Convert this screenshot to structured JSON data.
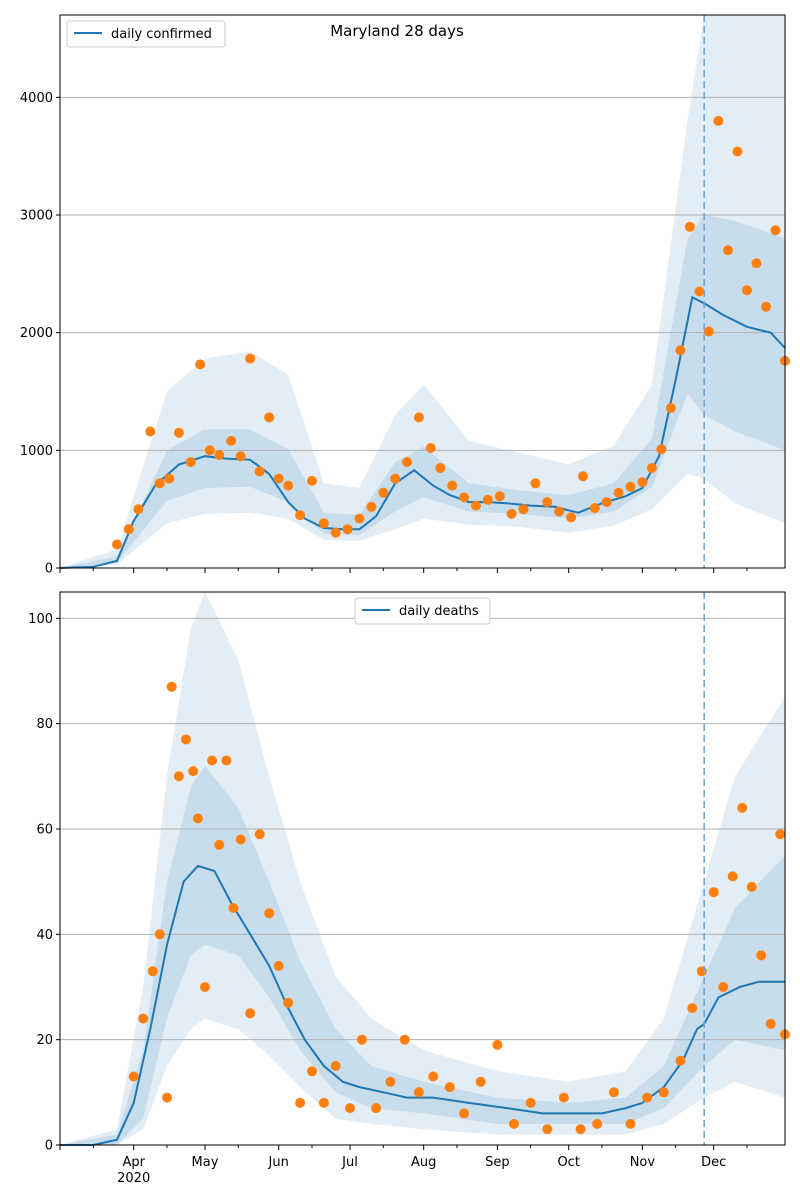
{
  "colors": {
    "line": "#1f77b4",
    "dots": "#ff7f0e",
    "band": "#1f77b4",
    "vline": "#6fa8d6",
    "grid": "#b0b0b0"
  },
  "chart_data": [
    {
      "type": "line",
      "title": "Maryland 28 days",
      "xlabel": "",
      "ylabel": "",
      "xlim": [
        "2020-03-01",
        "2020-12-31"
      ],
      "ylim": [
        0,
        4700
      ],
      "yticks": [
        0,
        1000,
        2000,
        3000,
        4000
      ],
      "grid": "y",
      "legend": {
        "position": "top-left",
        "entries": [
          "daily confirmed"
        ]
      },
      "marker_date": "2020-11-27",
      "series": [
        {
          "name": "daily confirmed",
          "kind": "line",
          "x": [
            "2020-03-01",
            "2020-03-15",
            "2020-03-25",
            "2020-04-01",
            "2020-04-10",
            "2020-04-20",
            "2020-05-01",
            "2020-05-10",
            "2020-05-20",
            "2020-05-28",
            "2020-06-05",
            "2020-06-12",
            "2020-06-20",
            "2020-06-28",
            "2020-07-05",
            "2020-07-12",
            "2020-07-20",
            "2020-07-28",
            "2020-08-05",
            "2020-08-12",
            "2020-08-20",
            "2020-08-28",
            "2020-09-05",
            "2020-09-15",
            "2020-09-25",
            "2020-10-05",
            "2020-10-15",
            "2020-10-25",
            "2020-11-01",
            "2020-11-08",
            "2020-11-15",
            "2020-11-22",
            "2020-11-27",
            "2020-12-05",
            "2020-12-15",
            "2020-12-25",
            "2020-12-31"
          ],
          "values": [
            0,
            10,
            60,
            400,
            700,
            880,
            950,
            930,
            920,
            800,
            560,
            420,
            340,
            330,
            330,
            440,
            720,
            830,
            700,
            620,
            560,
            560,
            550,
            530,
            520,
            470,
            550,
            610,
            680,
            950,
            1600,
            2300,
            2250,
            2150,
            2050,
            2000,
            1870
          ]
        },
        {
          "name": "observed",
          "kind": "points",
          "x": [
            "2020-03-25",
            "2020-03-30",
            "2020-04-03",
            "2020-04-08",
            "2020-04-12",
            "2020-04-16",
            "2020-04-20",
            "2020-04-25",
            "2020-04-29",
            "2020-05-03",
            "2020-05-07",
            "2020-05-12",
            "2020-05-16",
            "2020-05-20",
            "2020-05-24",
            "2020-05-28",
            "2020-06-01",
            "2020-06-05",
            "2020-06-10",
            "2020-06-15",
            "2020-06-20",
            "2020-06-25",
            "2020-06-30",
            "2020-07-05",
            "2020-07-10",
            "2020-07-15",
            "2020-07-20",
            "2020-07-25",
            "2020-07-30",
            "2020-08-04",
            "2020-08-08",
            "2020-08-13",
            "2020-08-18",
            "2020-08-23",
            "2020-08-28",
            "2020-09-02",
            "2020-09-07",
            "2020-09-12",
            "2020-09-17",
            "2020-09-22",
            "2020-09-27",
            "2020-10-02",
            "2020-10-07",
            "2020-10-12",
            "2020-10-17",
            "2020-10-22",
            "2020-10-27",
            "2020-11-01",
            "2020-11-05",
            "2020-11-09",
            "2020-11-13",
            "2020-11-17",
            "2020-11-21",
            "2020-11-25",
            "2020-11-29",
            "2020-12-03",
            "2020-12-07",
            "2020-12-11",
            "2020-12-15",
            "2020-12-19",
            "2020-12-23",
            "2020-12-27",
            "2020-12-31"
          ],
          "values": [
            200,
            330,
            500,
            1160,
            720,
            760,
            1150,
            900,
            1730,
            1000,
            960,
            1080,
            950,
            1780,
            820,
            1280,
            760,
            700,
            450,
            740,
            380,
            300,
            330,
            420,
            520,
            640,
            760,
            900,
            1280,
            1020,
            850,
            700,
            600,
            530,
            580,
            610,
            460,
            500,
            720,
            560,
            480,
            430,
            780,
            510,
            560,
            640,
            690,
            730,
            850,
            1010,
            1360,
            1850,
            2900,
            2350,
            2010,
            3800,
            2700,
            3540,
            2360,
            2590,
            2220,
            2870,
            1760
          ]
        },
        {
          "name": "band-90",
          "kind": "band",
          "x": [
            "2020-03-01",
            "2020-03-25",
            "2020-04-15",
            "2020-05-01",
            "2020-05-20",
            "2020-06-05",
            "2020-06-20",
            "2020-07-05",
            "2020-07-20",
            "2020-08-01",
            "2020-08-20",
            "2020-09-10",
            "2020-10-01",
            "2020-10-20",
            "2020-11-05",
            "2020-11-20",
            "2020-11-27",
            "2020-12-10",
            "2020-12-31"
          ],
          "low": [
            0,
            30,
            380,
            460,
            470,
            420,
            240,
            230,
            330,
            420,
            370,
            350,
            300,
            360,
            500,
            800,
            760,
            550,
            380
          ],
          "high": [
            0,
            160,
            1500,
            1780,
            1840,
            1640,
            720,
            680,
            1300,
            1560,
            1080,
            980,
            880,
            1040,
            1560,
            3800,
            4800,
            4800,
            4800
          ]
        },
        {
          "name": "band-50",
          "kind": "band",
          "x": [
            "2020-03-01",
            "2020-03-25",
            "2020-04-15",
            "2020-05-01",
            "2020-05-20",
            "2020-06-05",
            "2020-06-20",
            "2020-07-05",
            "2020-07-20",
            "2020-08-01",
            "2020-08-20",
            "2020-09-10",
            "2020-10-01",
            "2020-10-20",
            "2020-11-05",
            "2020-11-20",
            "2020-11-27",
            "2020-12-10",
            "2020-12-31"
          ],
          "low": [
            0,
            45,
            570,
            680,
            690,
            560,
            290,
            280,
            480,
            600,
            480,
            460,
            420,
            480,
            690,
            1480,
            1300,
            1160,
            1000
          ],
          "high": [
            0,
            100,
            1000,
            1180,
            1180,
            1010,
            470,
            450,
            900,
            1030,
            720,
            660,
            620,
            720,
            1100,
            2800,
            3000,
            2950,
            2800
          ]
        }
      ]
    },
    {
      "type": "line",
      "title": "",
      "xlabel": "",
      "ylabel": "",
      "xlim": [
        "2020-03-01",
        "2020-12-31"
      ],
      "ylim": [
        0,
        105
      ],
      "yticks": [
        0,
        20,
        40,
        60,
        80,
        100
      ],
      "xticks": [
        "Apr",
        "May",
        "Jun",
        "Jul",
        "Aug",
        "Sep",
        "Oct",
        "Nov",
        "Dec"
      ],
      "xtick_dates": [
        "2020-04-01",
        "2020-05-01",
        "2020-06-01",
        "2020-07-01",
        "2020-08-01",
        "2020-09-01",
        "2020-10-01",
        "2020-11-01",
        "2020-12-01"
      ],
      "year_label": "2020",
      "grid": "y",
      "legend": {
        "position": "top-center",
        "entries": [
          "daily deaths"
        ]
      },
      "marker_date": "2020-11-27",
      "series": [
        {
          "name": "daily deaths",
          "kind": "line",
          "x": [
            "2020-03-01",
            "2020-03-15",
            "2020-03-25",
            "2020-04-01",
            "2020-04-08",
            "2020-04-15",
            "2020-04-22",
            "2020-04-28",
            "2020-05-05",
            "2020-05-12",
            "2020-05-20",
            "2020-05-28",
            "2020-06-05",
            "2020-06-12",
            "2020-06-20",
            "2020-06-28",
            "2020-07-05",
            "2020-07-15",
            "2020-07-25",
            "2020-08-05",
            "2020-08-20",
            "2020-09-05",
            "2020-09-20",
            "2020-10-05",
            "2020-10-15",
            "2020-10-25",
            "2020-11-01",
            "2020-11-10",
            "2020-11-18",
            "2020-11-24",
            "2020-11-27",
            "2020-12-03",
            "2020-12-12",
            "2020-12-20",
            "2020-12-31"
          ],
          "values": [
            0,
            0,
            1,
            8,
            22,
            38,
            50,
            53,
            52,
            46,
            40,
            34,
            26,
            20,
            15,
            12,
            11,
            10,
            9,
            9,
            8,
            7,
            6,
            6,
            6,
            7,
            8,
            11,
            16,
            22,
            23,
            28,
            30,
            31,
            31
          ]
        },
        {
          "name": "observed",
          "kind": "points",
          "x": [
            "2020-04-01",
            "2020-04-05",
            "2020-04-09",
            "2020-04-12",
            "2020-04-15",
            "2020-04-17",
            "2020-04-20",
            "2020-04-23",
            "2020-04-26",
            "2020-04-28",
            "2020-05-01",
            "2020-05-04",
            "2020-05-07",
            "2020-05-10",
            "2020-05-13",
            "2020-05-16",
            "2020-05-20",
            "2020-05-24",
            "2020-05-28",
            "2020-06-01",
            "2020-06-05",
            "2020-06-10",
            "2020-06-15",
            "2020-06-20",
            "2020-06-25",
            "2020-07-01",
            "2020-07-06",
            "2020-07-12",
            "2020-07-18",
            "2020-07-24",
            "2020-07-30",
            "2020-08-05",
            "2020-08-12",
            "2020-08-18",
            "2020-08-25",
            "2020-09-01",
            "2020-09-08",
            "2020-09-15",
            "2020-09-22",
            "2020-09-29",
            "2020-10-06",
            "2020-10-13",
            "2020-10-20",
            "2020-10-27",
            "2020-11-03",
            "2020-11-10",
            "2020-11-17",
            "2020-11-22",
            "2020-11-26",
            "2020-12-01",
            "2020-12-05",
            "2020-12-09",
            "2020-12-13",
            "2020-12-17",
            "2020-12-21",
            "2020-12-25",
            "2020-12-29",
            "2020-12-31"
          ],
          "values": [
            13,
            24,
            33,
            40,
            9,
            87,
            70,
            77,
            71,
            62,
            30,
            73,
            57,
            73,
            45,
            58,
            25,
            59,
            44,
            34,
            27,
            8,
            14,
            8,
            15,
            7,
            20,
            7,
            12,
            20,
            10,
            13,
            11,
            6,
            12,
            19,
            4,
            8,
            3,
            9,
            3,
            4,
            10,
            4,
            9,
            10,
            16,
            26,
            33,
            48,
            30,
            51,
            64,
            49,
            36,
            23,
            59,
            21
          ]
        },
        {
          "name": "band-90",
          "kind": "band",
          "x": [
            "2020-03-01",
            "2020-03-25",
            "2020-04-05",
            "2020-04-15",
            "2020-04-25",
            "2020-05-01",
            "2020-05-15",
            "2020-05-28",
            "2020-06-10",
            "2020-06-25",
            "2020-07-10",
            "2020-08-01",
            "2020-09-01",
            "2020-10-01",
            "2020-10-25",
            "2020-11-10",
            "2020-11-27",
            "2020-12-10",
            "2020-12-31"
          ],
          "low": [
            0,
            0,
            3,
            15,
            22,
            24,
            22,
            17,
            11,
            5,
            4,
            3,
            2,
            2,
            2,
            4,
            9,
            12,
            9
          ],
          "high": [
            0,
            3,
            30,
            70,
            98,
            105,
            92,
            70,
            50,
            32,
            24,
            18,
            14,
            12,
            14,
            24,
            50,
            70,
            85
          ]
        },
        {
          "name": "band-50",
          "kind": "band",
          "x": [
            "2020-03-01",
            "2020-03-25",
            "2020-04-05",
            "2020-04-15",
            "2020-04-25",
            "2020-05-01",
            "2020-05-15",
            "2020-05-28",
            "2020-06-10",
            "2020-06-25",
            "2020-07-10",
            "2020-08-01",
            "2020-09-01",
            "2020-10-01",
            "2020-10-25",
            "2020-11-10",
            "2020-11-27",
            "2020-12-10",
            "2020-12-31"
          ],
          "low": [
            0,
            0,
            5,
            24,
            36,
            38,
            36,
            28,
            18,
            10,
            7,
            6,
            4,
            4,
            4,
            7,
            15,
            20,
            18
          ],
          "high": [
            0,
            2,
            18,
            50,
            68,
            72,
            64,
            50,
            35,
            22,
            15,
            12,
            9,
            8,
            9,
            15,
            32,
            45,
            55
          ]
        }
      ]
    }
  ]
}
